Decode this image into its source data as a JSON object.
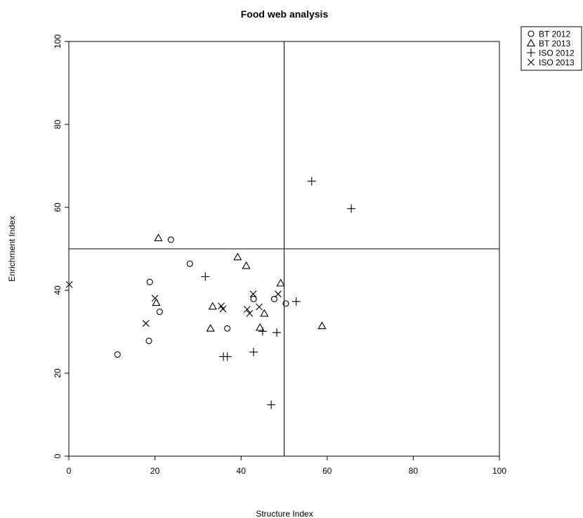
{
  "chart_data": {
    "type": "scatter",
    "title": "Food web analysis",
    "xlabel": "Structure Index",
    "ylabel": "Enrichment Index",
    "xlim": [
      0,
      100
    ],
    "ylim": [
      0,
      100
    ],
    "xticks": [
      0,
      20,
      40,
      60,
      80,
      100
    ],
    "yticks": [
      0,
      20,
      40,
      60,
      80,
      100
    ],
    "grid": false,
    "reference_lines": {
      "x": 50,
      "y": 50
    },
    "legend_position": "top-right, outside plot",
    "series": [
      {
        "name": "BT 2012",
        "symbol": "circle",
        "points": [
          [
            11.3,
            24.5
          ],
          [
            18.6,
            27.8
          ],
          [
            18.8,
            42.0
          ],
          [
            21.1,
            34.8
          ],
          [
            23.7,
            52.2
          ],
          [
            28.1,
            46.4
          ],
          [
            36.8,
            30.8
          ],
          [
            42.9,
            37.9
          ],
          [
            47.7,
            37.9
          ],
          [
            50.4,
            36.8
          ]
        ]
      },
      {
        "name": "BT 2013",
        "symbol": "triangle",
        "points": [
          [
            20.3,
            37.0
          ],
          [
            20.8,
            52.6
          ],
          [
            32.9,
            30.8
          ],
          [
            33.4,
            36.1
          ],
          [
            39.2,
            48.0
          ],
          [
            41.2,
            45.9
          ],
          [
            44.4,
            31.0
          ],
          [
            45.4,
            34.4
          ],
          [
            49.2,
            41.7
          ],
          [
            58.8,
            31.4
          ]
        ]
      },
      {
        "name": "ISO 2012",
        "symbol": "plus",
        "points": [
          [
            31.7,
            43.3
          ],
          [
            35.9,
            24.0
          ],
          [
            36.8,
            24.0
          ],
          [
            42.9,
            25.1
          ],
          [
            45.0,
            30.1
          ],
          [
            47.0,
            12.4
          ],
          [
            48.3,
            29.8
          ],
          [
            52.8,
            37.3
          ],
          [
            56.4,
            66.3
          ],
          [
            65.6,
            59.7
          ]
        ]
      },
      {
        "name": "ISO 2013",
        "symbol": "cross",
        "points": [
          [
            0.1,
            41.4
          ],
          [
            17.9,
            32.0
          ],
          [
            20.0,
            38.1
          ],
          [
            35.4,
            36.2
          ],
          [
            35.8,
            35.5
          ],
          [
            41.4,
            35.4
          ],
          [
            42.0,
            34.4
          ],
          [
            42.8,
            39.1
          ],
          [
            44.2,
            36.0
          ],
          [
            48.6,
            39.1
          ]
        ]
      }
    ]
  }
}
